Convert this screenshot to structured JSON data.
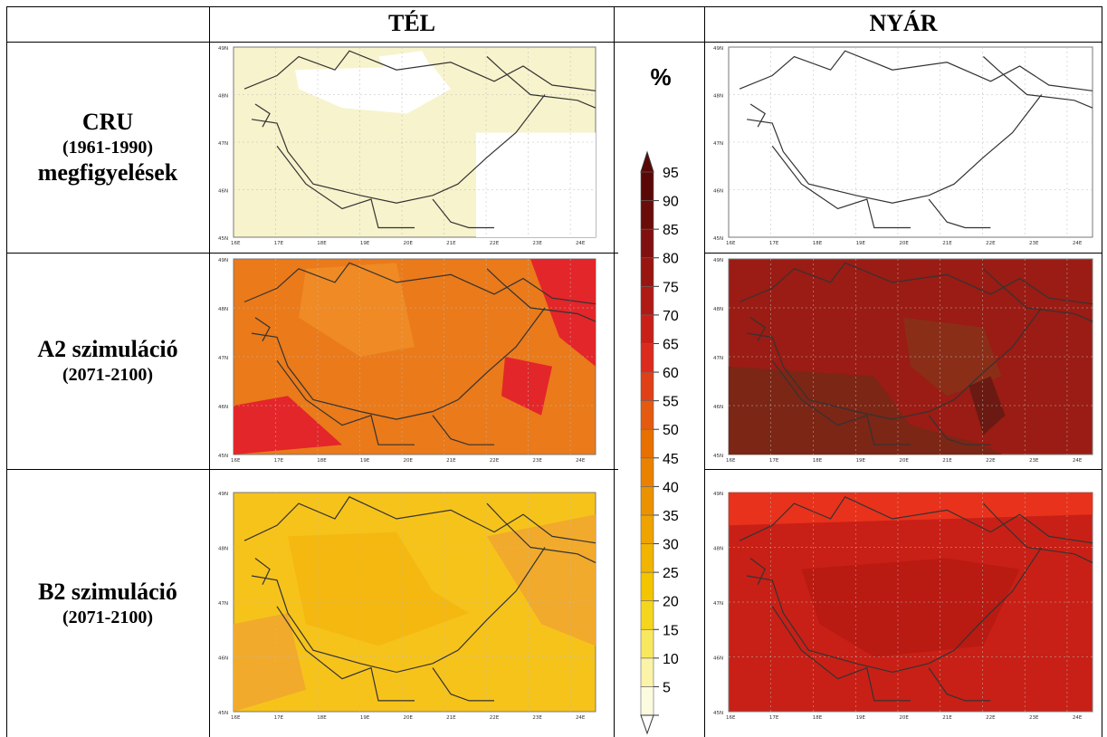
{
  "headers": {
    "winter": "TÉL",
    "summer": "NYÁR"
  },
  "rows": [
    {
      "line1": "CRU",
      "line2": "(1961-1990)",
      "line3": "megfigyelések"
    },
    {
      "line1": "A2 szimuláció",
      "line2": "(2071-2100)"
    },
    {
      "line1": "B2 szimuláció",
      "line2": "(2071-2100)"
    }
  ],
  "legend": {
    "unit": "%",
    "levels": [
      "95",
      "90",
      "85",
      "80",
      "75",
      "70",
      "65",
      "60",
      "55",
      "50",
      "45",
      "40",
      "35",
      "30",
      "25",
      "20",
      "15",
      "10",
      "5"
    ],
    "colors": [
      "#fcfbe0",
      "#faf3a8",
      "#f8e860",
      "#f5d61e",
      "#f3c400",
      "#f1b400",
      "#eea300",
      "#ec9200",
      "#ea8200",
      "#e77000",
      "#e45a10",
      "#e04018",
      "#dc2a1e",
      "#c82018",
      "#b01a14",
      "#981510",
      "#801010",
      "#6a0c0a",
      "#5a0807"
    ]
  },
  "axis_ticks": {
    "lat": [
      "49N",
      "48N",
      "47N",
      "46N",
      "45N"
    ],
    "lon": [
      "16E",
      "17E",
      "18E",
      "19E",
      "20E",
      "21E",
      "22E",
      "23E",
      "24E"
    ]
  },
  "maps": {
    "cru_winter": {
      "base": "#f7f3cc",
      "patch": "#ffffff"
    },
    "cru_summer": {
      "base": "#ffffff",
      "patch": "#ffffff"
    },
    "a2_winter": {
      "base": "#ea7a1a",
      "patch": "#e3262a"
    },
    "a2_summer": {
      "base": "#9a1c14",
      "patch": "#6a1a12"
    },
    "b2_winter": {
      "base": "#f6c31b",
      "patch": "#f1aa2c"
    },
    "b2_summer": {
      "base": "#c82016",
      "patch": "#e52a1c"
    }
  }
}
